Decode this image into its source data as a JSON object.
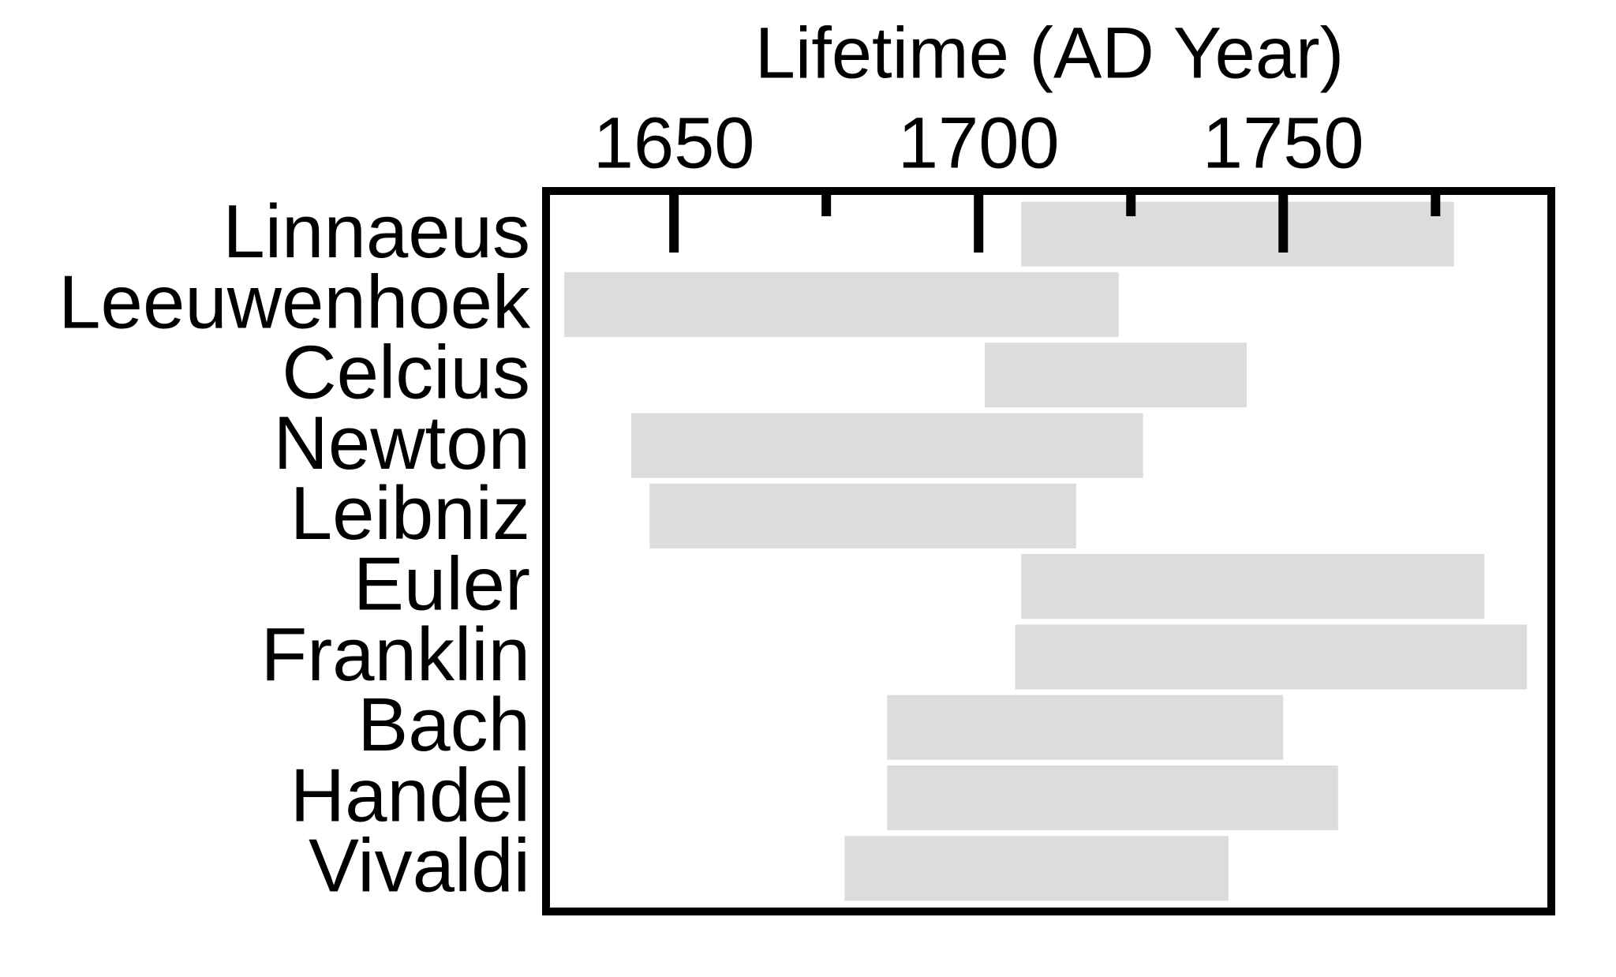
{
  "chart_data": {
    "type": "range_bar",
    "orientation": "horizontal",
    "title": "Lifetime (AD Year)",
    "categories": [
      "Linnaeus",
      "Leeuwenhoek",
      "Celcius",
      "Newton",
      "Leibniz",
      "Euler",
      "Franklin",
      "Bach",
      "Handel",
      "Vivaldi"
    ],
    "start": [
      1707,
      1632,
      1701,
      1643,
      1646,
      1707,
      1706,
      1685,
      1685,
      1678
    ],
    "end": [
      1778,
      1723,
      1744,
      1727,
      1716,
      1783,
      1790,
      1750,
      1759,
      1741
    ],
    "color": "#dcdcdc",
    "xlim": [
      1629,
      1794
    ],
    "xticks": [
      1650,
      1700,
      1750
    ],
    "xminor_ticks": [
      1675,
      1725,
      1775
    ],
    "axis_position": "top",
    "grid": false
  }
}
